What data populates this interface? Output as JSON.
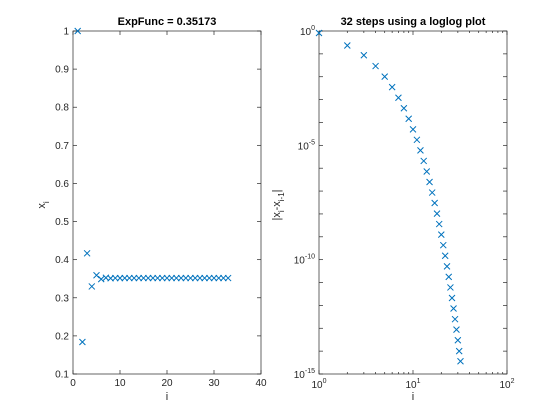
{
  "chart_data": [
    {
      "type": "scatter",
      "title": "ExpFunc = 0.35173",
      "xlabel": "i",
      "ylabel_main": "x",
      "ylabel_sub": "i",
      "xlim": [
        0,
        40
      ],
      "ylim": [
        0.1,
        1
      ],
      "xticks": [
        0,
        10,
        20,
        30,
        40
      ],
      "xtick_labels": [
        "0",
        "10",
        "20",
        "30",
        "40"
      ],
      "yticks": [
        0.1,
        0.2,
        0.3,
        0.4,
        0.5,
        0.6,
        0.7,
        0.8,
        0.9,
        1
      ],
      "ytick_labels": [
        "0.1",
        "0.2",
        "0.3",
        "0.4",
        "0.5",
        "0.6",
        "0.7",
        "0.8",
        "0.9",
        "1"
      ],
      "marker": "x",
      "color": "#0072bd",
      "series": [
        {
          "name": "x_i",
          "x": [
            1,
            2,
            3,
            4,
            5,
            6,
            7,
            8,
            9,
            10,
            11,
            12,
            13,
            14,
            15,
            16,
            17,
            18,
            19,
            20,
            21,
            22,
            23,
            24,
            25,
            26,
            27,
            28,
            29,
            30,
            31,
            32,
            33
          ],
          "y": [
            1,
            0.1839,
            0.4167,
            0.3298,
            0.3591,
            0.349,
            0.3525,
            0.3513,
            0.3517,
            0.3516,
            0.3517,
            0.3517,
            0.3517,
            0.3517,
            0.3517,
            0.3517,
            0.3517,
            0.3517,
            0.3517,
            0.3517,
            0.3517,
            0.3517,
            0.3517,
            0.3517,
            0.3517,
            0.3517,
            0.3517,
            0.3517,
            0.3517,
            0.3517,
            0.3517,
            0.3517,
            0.3517
          ]
        }
      ]
    },
    {
      "type": "scatter",
      "scale": "loglog",
      "title": "32 steps using a loglog plot",
      "xlabel": "i",
      "ylabel_main": "|x",
      "ylabel_sub1": "i",
      "ylabel_mid": "-x",
      "ylabel_sub2": "i-1",
      "ylabel_end": "|",
      "xlim": [
        1,
        100
      ],
      "ylim": [
        1e-15,
        1
      ],
      "xtick_labels": [
        {
          "base": "10",
          "exp": "0"
        },
        {
          "base": "10",
          "exp": "1"
        },
        {
          "base": "10",
          "exp": "2"
        }
      ],
      "ytick_labels": [
        {
          "base": "10",
          "exp": "0"
        },
        {
          "base": "10",
          "exp": "-5"
        },
        {
          "base": "10",
          "exp": "-10"
        },
        {
          "base": "10",
          "exp": "-15"
        }
      ],
      "marker": "x",
      "color": "#0072bd",
      "series": [
        {
          "name": "|x_i - x_(i-1)|",
          "x": [
            1,
            2,
            3,
            4,
            5,
            6,
            7,
            8,
            9,
            10,
            11,
            12,
            13,
            14,
            15,
            16,
            17,
            18,
            19,
            20,
            21,
            22,
            23,
            24,
            25,
            26,
            27,
            28,
            29,
            30,
            31,
            32
          ],
          "y": [
            0.816,
            0.233,
            0.0869,
            0.0293,
            0.0101,
            0.0035,
            0.0012,
            0.00042,
            0.000145,
            5e-05,
            1.74e-05,
            6e-06,
            2.08e-06,
            7.2e-07,
            2.5e-07,
            8.6e-08,
            3e-08,
            1.03e-08,
            3.6e-09,
            1.24e-09,
            4.3e-10,
            1.48e-10,
            5.1e-11,
            1.77e-11,
            6.1e-12,
            2.1e-12,
            7.3e-13,
            2.5e-13,
            8.7e-14,
            3e-14,
            1e-14,
            3.6e-15
          ]
        }
      ]
    }
  ]
}
